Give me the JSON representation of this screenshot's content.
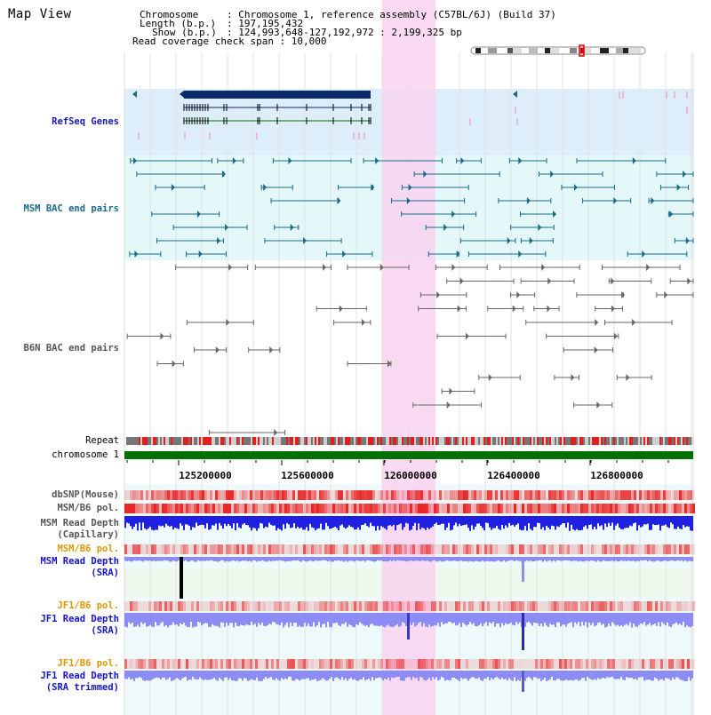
{
  "app": {
    "title": "Map View"
  },
  "info": {
    "chromosome_key": "Chromosome",
    "chromosome_value": ": Chromosome 1, reference assembly (C57BL/6J) (Build 37)",
    "length_key": "Length (b.p.)",
    "length_value": ": 197,195,432",
    "show_key": "Show (b.p.)",
    "show_value": ": 124,993,648-127,192,972 : 2,199,325 bp",
    "coverage_line": "Read coverage check span : 10,000"
  },
  "tracks": [
    {
      "id": "refseq",
      "label": "RefSeq Genes",
      "color": "#1a1aa8"
    },
    {
      "id": "msm_bac",
      "label": "MSM BAC end pairs",
      "color": "#1a6b87"
    },
    {
      "id": "b6n_bac",
      "label": "B6N BAC end pairs",
      "color": "#555555"
    },
    {
      "id": "repeat",
      "label": "Repeat",
      "color": "#000000"
    },
    {
      "id": "chromosome",
      "label": "chromosome 1",
      "color": "#000000"
    },
    {
      "id": "dbsnp",
      "label": "dbSNP(Mouse)",
      "color": "#555555"
    },
    {
      "id": "msm_b6_pol",
      "label": "MSM/B6 pol.",
      "color": "#555555"
    },
    {
      "id": "msm_depth_cap",
      "label": "MSM Read Depth",
      "label2": "(Capillary)",
      "color": "#555555"
    },
    {
      "id": "msm_b6_pol2",
      "label": "MSM/B6 pol.",
      "color": "#d99a00"
    },
    {
      "id": "msm_depth_sra",
      "label": "MSM Read Depth",
      "label2": "(SRA)",
      "color": "#1515c8"
    },
    {
      "id": "jf1_b6_pol",
      "label": "JF1/B6 pol.",
      "color": "#d99a00"
    },
    {
      "id": "jf1_depth_sra",
      "label": "JF1 Read Depth",
      "label2": "(SRA)",
      "color": "#1515c8"
    },
    {
      "id": "jf1_b6_pol2",
      "label": "JF1/B6 pol.",
      "color": "#d99a00"
    },
    {
      "id": "jf1_depth_trim",
      "label": "JF1 Read Depth",
      "label2": "(SRA trimmed)",
      "color": "#1515c8"
    }
  ],
  "axis": {
    "ticks": [
      "125200000",
      "125600000",
      "126000000",
      "126400000",
      "126800000"
    ]
  },
  "colors": {
    "highlight": "#f8d4f0",
    "refseq_bg": "#ddeefa",
    "msm_bg": "#e4f8fa",
    "gene": "#0a2a6a",
    "msm_feature": "#1a6b87",
    "b6n_feature": "#666666",
    "chromosome_bar": "#007000",
    "depth_blue": "#2020e0",
    "depth_light": "#8c8cf4"
  }
}
